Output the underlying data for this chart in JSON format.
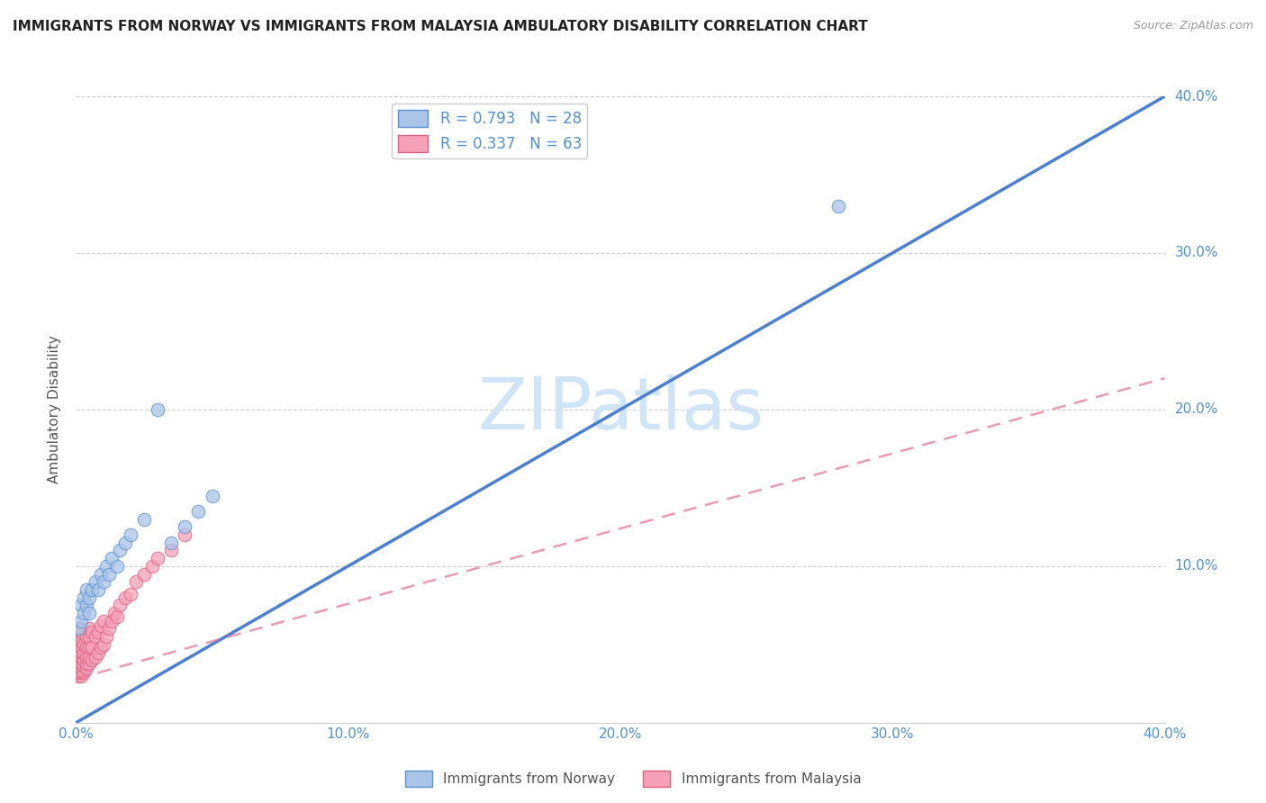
{
  "title": "IMMIGRANTS FROM NORWAY VS IMMIGRANTS FROM MALAYSIA AMBULATORY DISABILITY CORRELATION CHART",
  "source": "Source: ZipAtlas.com",
  "ylabel": "Ambulatory Disability",
  "xlim": [
    0.0,
    0.4
  ],
  "ylim": [
    0.0,
    0.4
  ],
  "xtick_labels": [
    "0.0%",
    "",
    "10.0%",
    "",
    "20.0%",
    "",
    "30.0%",
    "",
    "40.0%"
  ],
  "xtick_vals": [
    0.0,
    0.05,
    0.1,
    0.15,
    0.2,
    0.25,
    0.3,
    0.35,
    0.4
  ],
  "ytick_labels": [
    "10.0%",
    "20.0%",
    "30.0%",
    "40.0%"
  ],
  "ytick_vals": [
    0.1,
    0.2,
    0.3,
    0.4
  ],
  "norway_color": "#aac4e8",
  "malaysia_color": "#f5a0b8",
  "norway_edge_color": "#5a8fd0",
  "malaysia_edge_color": "#e06080",
  "norway_line_color": "#4a7fd4",
  "malaysia_line_color": "#e07090",
  "tick_color": "#5090d0",
  "norway_R": 0.793,
  "norway_N": 28,
  "malaysia_R": 0.337,
  "malaysia_N": 63,
  "watermark_text": "ZIPatlas",
  "watermark_color": "#d0e4f8",
  "norway_scatter_x": [
    0.001,
    0.002,
    0.002,
    0.003,
    0.003,
    0.004,
    0.004,
    0.005,
    0.005,
    0.006,
    0.007,
    0.008,
    0.009,
    0.01,
    0.011,
    0.012,
    0.013,
    0.015,
    0.016,
    0.018,
    0.02,
    0.025,
    0.03,
    0.035,
    0.04,
    0.045,
    0.05,
    0.28
  ],
  "norway_scatter_y": [
    0.06,
    0.065,
    0.075,
    0.07,
    0.08,
    0.075,
    0.085,
    0.07,
    0.08,
    0.085,
    0.09,
    0.085,
    0.095,
    0.09,
    0.1,
    0.095,
    0.105,
    0.1,
    0.11,
    0.115,
    0.12,
    0.13,
    0.2,
    0.115,
    0.125,
    0.135,
    0.145,
    0.33
  ],
  "malaysia_scatter_x": [
    0.001,
    0.001,
    0.001,
    0.001,
    0.001,
    0.001,
    0.001,
    0.001,
    0.001,
    0.001,
    0.001,
    0.001,
    0.002,
    0.002,
    0.002,
    0.002,
    0.002,
    0.002,
    0.002,
    0.002,
    0.002,
    0.002,
    0.002,
    0.003,
    0.003,
    0.003,
    0.003,
    0.003,
    0.004,
    0.004,
    0.004,
    0.004,
    0.004,
    0.005,
    0.005,
    0.005,
    0.005,
    0.005,
    0.006,
    0.006,
    0.006,
    0.007,
    0.007,
    0.008,
    0.008,
    0.009,
    0.009,
    0.01,
    0.01,
    0.011,
    0.012,
    0.013,
    0.014,
    0.015,
    0.016,
    0.018,
    0.02,
    0.022,
    0.025,
    0.028,
    0.03,
    0.035,
    0.04
  ],
  "malaysia_scatter_y": [
    0.03,
    0.032,
    0.035,
    0.038,
    0.04,
    0.042,
    0.045,
    0.048,
    0.05,
    0.053,
    0.055,
    0.06,
    0.03,
    0.032,
    0.035,
    0.038,
    0.042,
    0.045,
    0.048,
    0.052,
    0.055,
    0.058,
    0.06,
    0.032,
    0.036,
    0.04,
    0.045,
    0.05,
    0.035,
    0.038,
    0.042,
    0.048,
    0.055,
    0.038,
    0.042,
    0.048,
    0.055,
    0.06,
    0.04,
    0.048,
    0.058,
    0.042,
    0.055,
    0.045,
    0.058,
    0.048,
    0.062,
    0.05,
    0.065,
    0.055,
    0.06,
    0.065,
    0.07,
    0.068,
    0.075,
    0.08,
    0.082,
    0.09,
    0.095,
    0.1,
    0.105,
    0.11,
    0.12
  ],
  "norway_line_x": [
    0.0,
    0.4
  ],
  "norway_line_y": [
    0.0,
    0.4
  ],
  "malaysia_line_x": [
    0.0,
    0.4
  ],
  "malaysia_line_y": [
    0.028,
    0.22
  ]
}
